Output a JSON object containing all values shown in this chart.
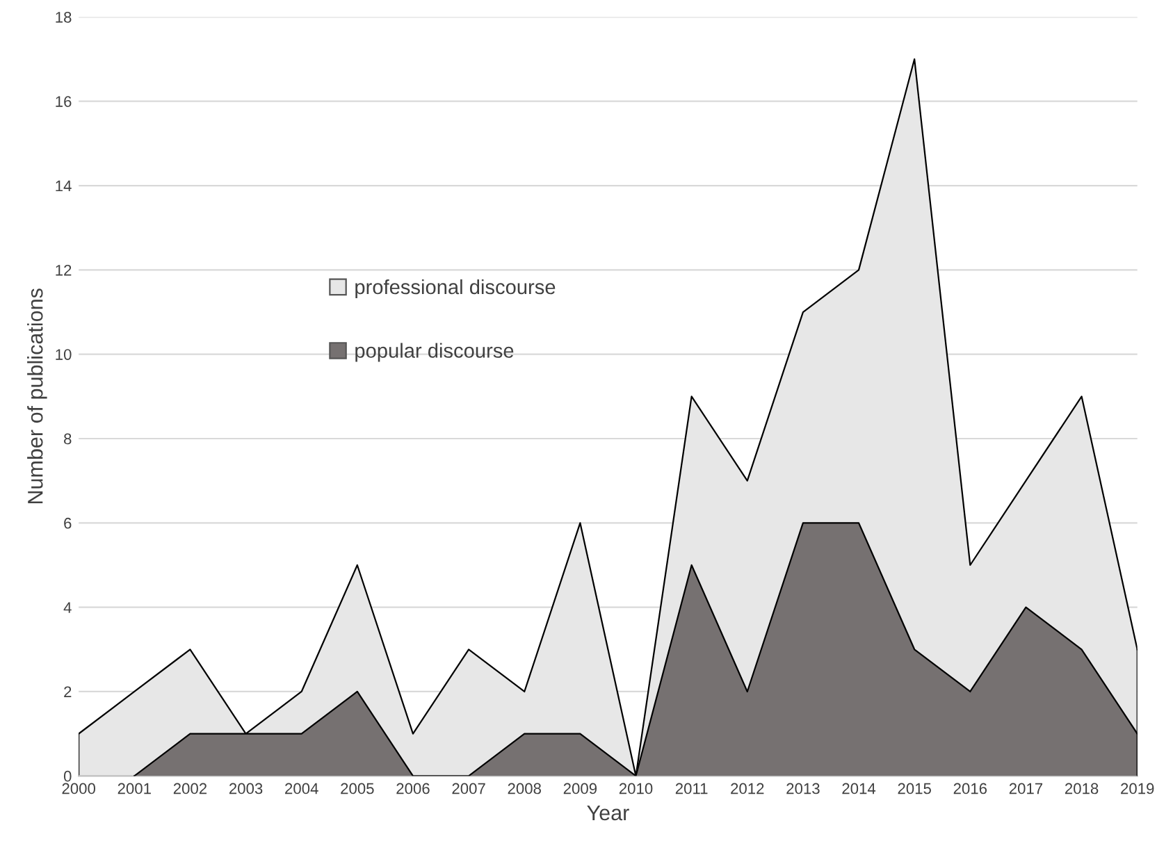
{
  "chart_data": {
    "type": "area",
    "xlabel": "Year",
    "ylabel": "Number of publications",
    "categories": [
      "2000",
      "2001",
      "2002",
      "2003",
      "2004",
      "2005",
      "2006",
      "2007",
      "2008",
      "2009",
      "2010",
      "2011",
      "2012",
      "2013",
      "2014",
      "2015",
      "2016",
      "2017",
      "2018",
      "2019"
    ],
    "series": [
      {
        "name": "professional discourse",
        "color": "#e7e7e7",
        "values": [
          1,
          2,
          3,
          1,
          2,
          5,
          1,
          3,
          2,
          6,
          0,
          9,
          7,
          11,
          12,
          17,
          5,
          7,
          9,
          3
        ]
      },
      {
        "name": "popular discourse",
        "color": "#767171",
        "values": [
          null,
          0,
          1,
          1,
          1,
          2,
          0,
          0,
          1,
          1,
          0,
          5,
          2,
          6,
          6,
          3,
          2,
          4,
          3,
          1
        ]
      }
    ],
    "ylim": [
      0,
      18
    ],
    "yticks": [
      0,
      2,
      4,
      6,
      8,
      10,
      12,
      14,
      16,
      18
    ],
    "grid": "y",
    "legend": "center left"
  }
}
